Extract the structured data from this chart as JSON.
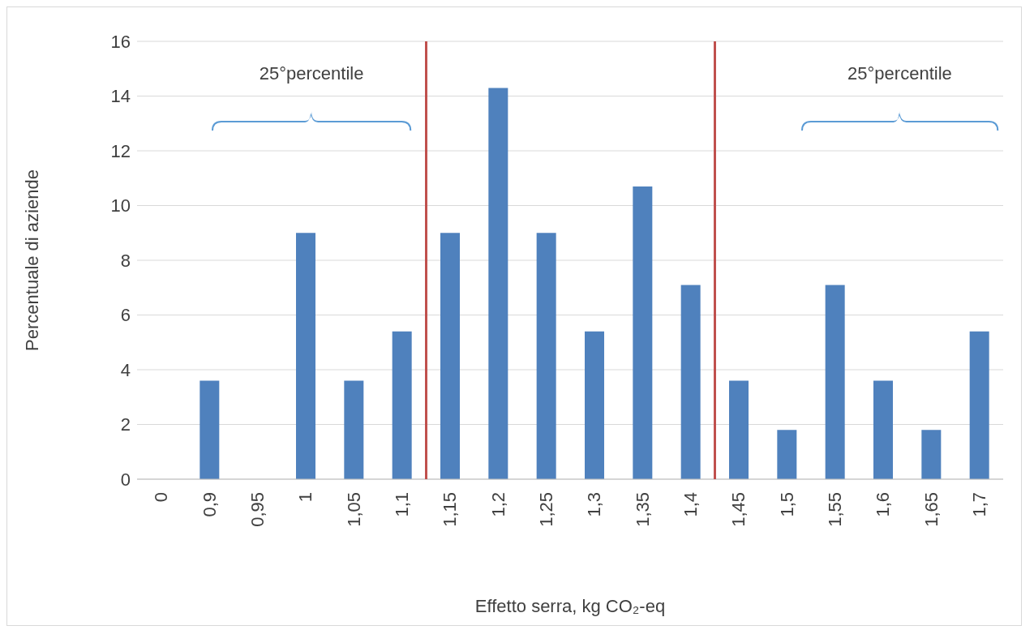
{
  "chart_data": {
    "type": "bar",
    "xlabel": "Effetto serra, kg CO₂-eq",
    "ylabel": "Percentuale di aziende",
    "categories": [
      "0",
      "0,9",
      "0,95",
      "1",
      "1,05",
      "1,1",
      "1,15",
      "1,2",
      "1,25",
      "1,3",
      "1,35",
      "1,4",
      "1,45",
      "1,5",
      "1,55",
      "1,6",
      "1,65",
      "1,7"
    ],
    "values": [
      0,
      3.6,
      0,
      9,
      3.6,
      5.4,
      9,
      14.3,
      9,
      5.4,
      10.7,
      7.1,
      3.6,
      1.8,
      7.1,
      3.6,
      1.8,
      5.4
    ],
    "color": "#4f81bd",
    "ylim": [
      0,
      16
    ],
    "yticks": [
      0,
      2,
      4,
      6,
      8,
      10,
      12,
      14,
      16
    ],
    "grid": "y",
    "annotations": [
      "25°percentile",
      "25°percentile"
    ]
  }
}
